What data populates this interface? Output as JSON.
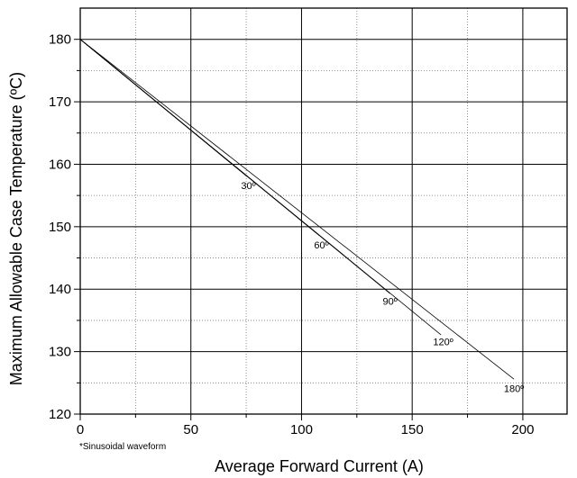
{
  "chart_data": {
    "type": "line",
    "title": "",
    "xlabel": "Average Forward Current (A)",
    "ylabel": "Maximum Allowable Case Temperature (ºC)",
    "xlim": [
      0,
      220
    ],
    "ylim": [
      120,
      185
    ],
    "xticks": [
      0,
      50,
      100,
      150,
      200
    ],
    "yticks": [
      120,
      130,
      140,
      150,
      160,
      170,
      180
    ],
    "x_minor_step": 25,
    "y_minor_step": 5,
    "grid": true,
    "note": "*Sinusoidal waveform",
    "series": [
      {
        "name": "30º",
        "x": [
          0,
          75.5
        ],
        "y": [
          180,
          158.0
        ]
      },
      {
        "name": "60º",
        "x": [
          0,
          108
        ],
        "y": [
          180,
          148.6
        ]
      },
      {
        "name": "90º",
        "x": [
          0,
          140
        ],
        "y": [
          180,
          139.3
        ]
      },
      {
        "name": "120º",
        "x": [
          0,
          163
        ],
        "y": [
          180,
          132.7
        ]
      },
      {
        "name": "180º",
        "x": [
          0,
          196
        ],
        "y": [
          180,
          125.6
        ]
      }
    ],
    "curve_labels": [
      {
        "text": "30º",
        "x": 76,
        "y": 156
      },
      {
        "text": "60º",
        "x": 109,
        "y": 146.5
      },
      {
        "text": "90º",
        "x": 140,
        "y": 137.5
      },
      {
        "text": "120º",
        "x": 164,
        "y": 131
      },
      {
        "text": "180º",
        "x": 196,
        "y": 123.5
      }
    ]
  }
}
